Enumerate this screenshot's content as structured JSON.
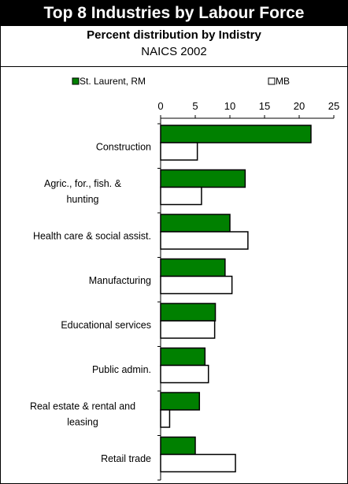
{
  "header": {
    "title": "Top 8 Industries by Labour Force",
    "subtitle": "Percent distribution by Indistry",
    "subtitle2": "NAICS 2002"
  },
  "colors": {
    "series1": "#008000",
    "series2": "#ffffff",
    "outline": "#000000",
    "title_bg": "#000000",
    "title_fg": "#ffffff"
  },
  "chart_data": {
    "type": "bar",
    "orientation": "horizontal",
    "categories": [
      "Construction",
      "Agric., for., fish. & hunting",
      "Health care & social assist.",
      "Manufacturing",
      "Educational services",
      "Public admin.",
      "Real estate & rental and leasing",
      "Retail trade"
    ],
    "series": [
      {
        "name": "St. Laurent, RM",
        "values": [
          21.7,
          12.2,
          10.0,
          9.3,
          7.9,
          6.4,
          5.6,
          5.0
        ]
      },
      {
        "name": "MB",
        "values": [
          5.3,
          5.9,
          12.6,
          10.3,
          7.8,
          6.9,
          1.3,
          10.8
        ]
      }
    ],
    "xticks": [
      "0",
      "5",
      "10",
      "15",
      "20",
      "25"
    ],
    "xlim": [
      0,
      25
    ],
    "legend_position": "top",
    "grid": false
  }
}
